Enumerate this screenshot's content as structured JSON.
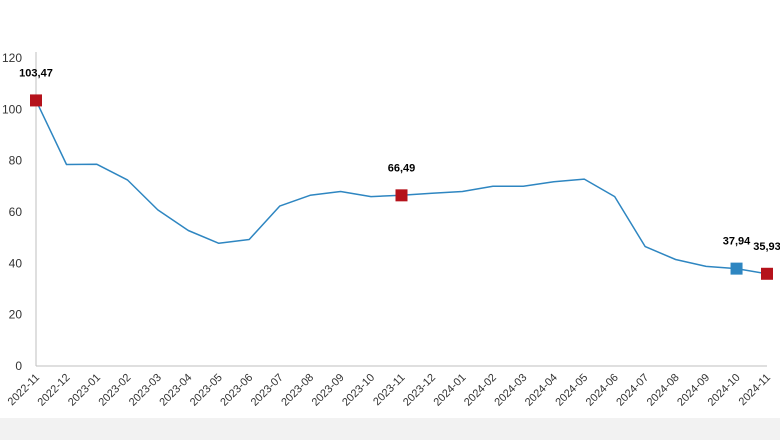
{
  "chart_data": {
    "type": "line",
    "title": "",
    "xlabel": "",
    "ylabel": "",
    "ylim": [
      0,
      120
    ],
    "yticks": [
      0,
      20,
      40,
      60,
      80,
      100,
      120
    ],
    "grid": false,
    "legend": "none",
    "categories": [
      "2022-11",
      "2022-12",
      "2023-01",
      "2023-02",
      "2023-03",
      "2023-04",
      "2023-05",
      "2023-06",
      "2023-07",
      "2023-08",
      "2023-09",
      "2023-10",
      "2023-11",
      "2023-12",
      "2024-01",
      "2024-02",
      "2024-03",
      "2024-04",
      "2024-05",
      "2024-06",
      "2024-07",
      "2024-08",
      "2024-09",
      "2024-10",
      "2024-11"
    ],
    "series": [
      {
        "values": [
          103.47,
          78.5,
          78.6,
          72.5,
          60.8,
          52.8,
          47.8,
          49.3,
          62.3,
          66.5,
          68.0,
          66.0,
          66.49,
          67.3,
          68.0,
          70.0,
          70.0,
          71.8,
          72.8,
          66.0,
          46.5,
          41.5,
          38.8,
          37.94,
          35.93
        ],
        "color": "#2e86c1"
      }
    ],
    "markers": [
      {
        "index": 0,
        "color": "#b5121b",
        "label": "103,47"
      },
      {
        "index": 12,
        "color": "#b5121b",
        "label": "66,49"
      },
      {
        "index": 23,
        "color": "#2e86c1",
        "label": "37,94"
      },
      {
        "index": 24,
        "color": "#b5121b",
        "label": "35,93"
      }
    ]
  }
}
